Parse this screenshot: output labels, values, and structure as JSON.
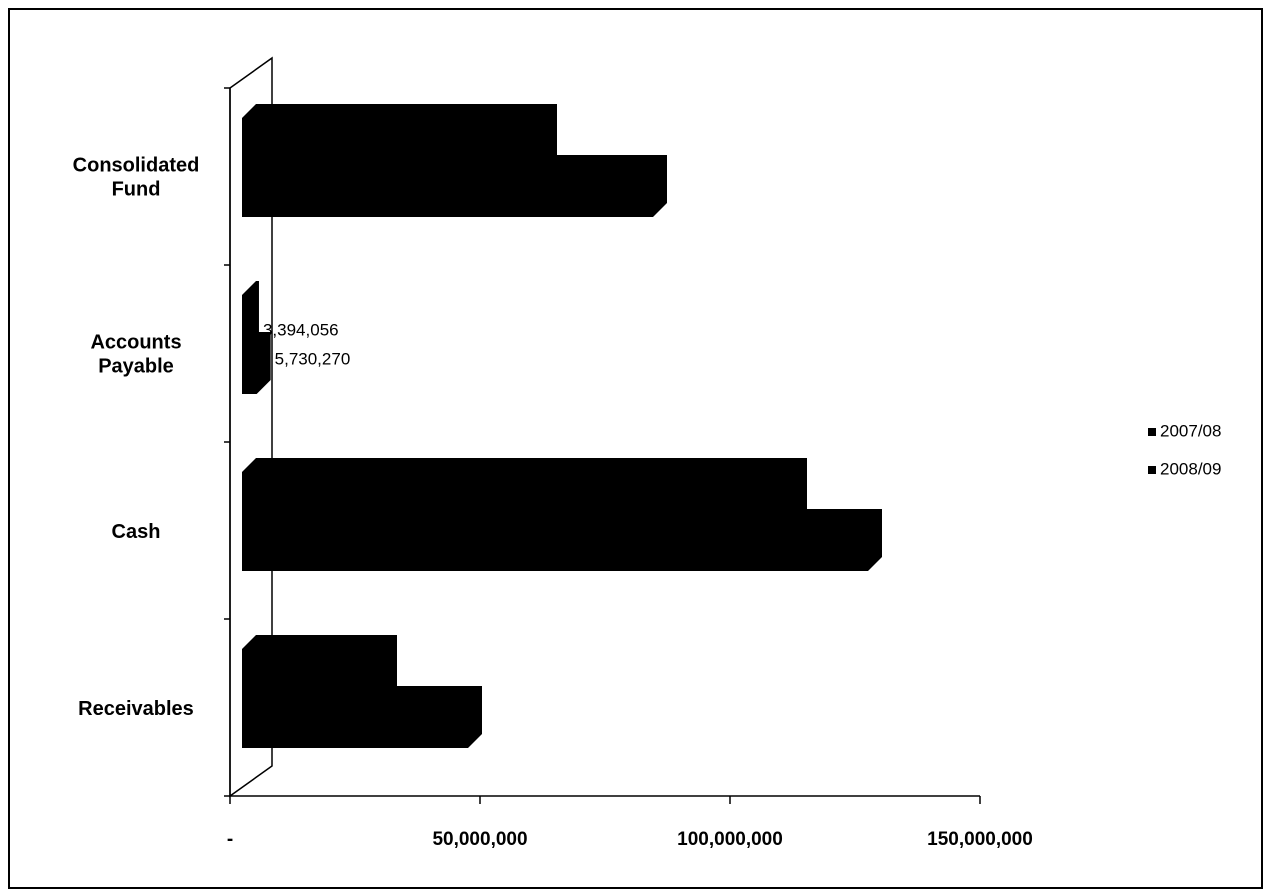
{
  "chart_data": {
    "type": "bar3d",
    "categories": [
      "Consolidated Fund",
      "Accounts Payable",
      "Cash",
      "Receivables"
    ],
    "series": [
      {
        "name": "2007/08",
        "color": "#000000",
        "values": [
          63000000,
          3394056,
          113000000,
          31000000
        ],
        "value_labels": [
          null,
          "3,394,056",
          null,
          null
        ]
      },
      {
        "name": "2008/09",
        "color": "#000000",
        "values": [
          85000000,
          5730270,
          128000000,
          48000000
        ],
        "value_labels": [
          null,
          "5,730,270",
          null,
          null
        ]
      }
    ],
    "xlim": [
      0,
      150000000
    ],
    "xticks": [
      {
        "value": 0,
        "label": "-"
      },
      {
        "value": 50000000,
        "label": "50,000,000"
      },
      {
        "value": 100000000,
        "label": "100,000,000"
      },
      {
        "value": 150000000,
        "label": "150,000,000"
      }
    ],
    "legend": "right"
  }
}
